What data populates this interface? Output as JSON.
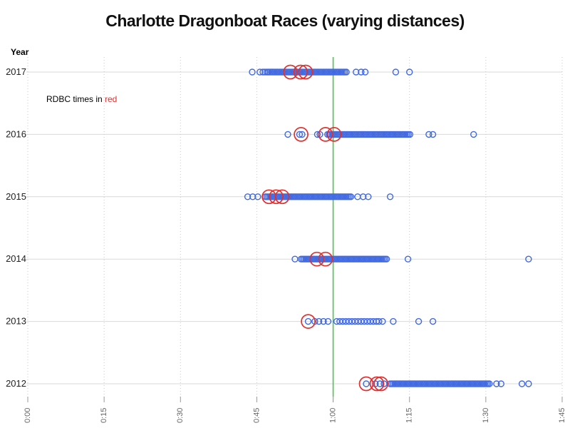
{
  "title": "Charlotte Dragonboat Races (varying distances)",
  "y_axis_label": "Year",
  "annotation": {
    "prefix": "RDBC times in ",
    "highlight": "red"
  },
  "colors": {
    "blue_point": "#4169e1",
    "rdbc_point": "#e03030",
    "reference_line": "#33cc33",
    "row_gridline": "#d9d9d9",
    "dotted_gridline": "#c8c8c8",
    "tick_mark": "#999999",
    "tick_label": "#666666",
    "year_label": "#222222"
  },
  "chart_data": {
    "type": "scatter",
    "subtype": "horizontal-strip-plot",
    "title": "Charlotte Dragonboat Races (varying distances)",
    "xlabel": "",
    "ylabel": "Year",
    "x_units": "minutes (axis labeled h:mm)",
    "x_axis": {
      "min_minutes": 0,
      "max_minutes": 105,
      "tick_interval_minutes": 15,
      "tick_labels": [
        "0:00",
        "0:15",
        "0:30",
        "0:45",
        "1:00",
        "1:15",
        "1:30",
        "1:45"
      ],
      "grid": "dotted vertical at each tick"
    },
    "reference_line_minutes": 60,
    "legend_note": "RDBC times shown as large red open circles",
    "categories": [
      "2017",
      "2016",
      "2015",
      "2014",
      "2013",
      "2012"
    ],
    "series": [
      {
        "year": "2017",
        "points_minutes": [
          44.1,
          45.6,
          46.2,
          46.6,
          47.0,
          47.3,
          47.6,
          47.9,
          48.2,
          48.5,
          48.8,
          49.1,
          49.4,
          49.7,
          50.0,
          50.3,
          50.6,
          50.9,
          51.2,
          51.5,
          51.8,
          52.1,
          52.4,
          52.7,
          53.0,
          53.3,
          53.6,
          53.9,
          54.2,
          54.5,
          54.8,
          55.1,
          55.4,
          55.7,
          56.0,
          56.3,
          56.6,
          56.9,
          57.2,
          57.5,
          57.8,
          58.1,
          58.4,
          58.7,
          59.0,
          59.3,
          59.6,
          59.9,
          60.2,
          60.5,
          60.8,
          61.1,
          61.4,
          61.7,
          62.0,
          62.3,
          62.6,
          64.5,
          65.5,
          66.3,
          72.3,
          75.0
        ],
        "rdbc_minutes": [
          51.6,
          53.6,
          54.6
        ]
      },
      {
        "year": "2016",
        "points_minutes": [
          51.1,
          53.4,
          53.9,
          56.9,
          57.4,
          58.9,
          59.2,
          59.5,
          59.8,
          60.1,
          60.4,
          60.7,
          61.0,
          61.3,
          61.6,
          61.9,
          62.2,
          62.5,
          62.8,
          63.1,
          63.4,
          63.7,
          64.0,
          64.3,
          64.6,
          64.9,
          65.2,
          65.5,
          65.8,
          66.1,
          66.4,
          66.7,
          67.0,
          67.3,
          67.6,
          67.9,
          68.2,
          68.5,
          68.8,
          69.1,
          69.4,
          69.7,
          70.0,
          70.3,
          70.6,
          70.9,
          71.2,
          71.5,
          71.8,
          72.1,
          72.4,
          72.7,
          73.0,
          73.3,
          73.6,
          73.9,
          74.2,
          74.5,
          74.8,
          75.1,
          78.8,
          79.6,
          87.6
        ],
        "rdbc_minutes": [
          53.7,
          58.5,
          60.2
        ]
      },
      {
        "year": "2015",
        "points_minutes": [
          43.2,
          44.2,
          45.2,
          46.7,
          47.0,
          47.3,
          47.6,
          47.9,
          48.2,
          48.5,
          48.8,
          49.1,
          49.4,
          49.7,
          50.0,
          50.3,
          50.6,
          50.9,
          51.2,
          51.5,
          51.8,
          52.1,
          52.4,
          52.7,
          53.0,
          53.3,
          53.6,
          53.9,
          54.2,
          54.5,
          54.8,
          55.1,
          55.4,
          55.7,
          56.0,
          56.3,
          56.6,
          56.9,
          57.2,
          57.5,
          57.8,
          58.1,
          58.4,
          58.7,
          59.0,
          59.3,
          59.6,
          59.9,
          60.2,
          60.5,
          60.8,
          61.1,
          61.4,
          61.7,
          62.0,
          62.3,
          62.6,
          62.9,
          63.2,
          63.5,
          64.8,
          65.9,
          66.9,
          71.2
        ],
        "rdbc_minutes": [
          47.4,
          48.8,
          50.0
        ]
      },
      {
        "year": "2014",
        "points_minutes": [
          52.5,
          53.7,
          54.0,
          54.3,
          54.6,
          54.9,
          55.2,
          55.5,
          55.8,
          56.1,
          56.4,
          56.7,
          57.0,
          57.3,
          57.6,
          57.9,
          58.2,
          58.5,
          58.8,
          59.1,
          59.4,
          59.7,
          60.0,
          60.3,
          60.6,
          60.9,
          61.2,
          61.5,
          61.8,
          62.1,
          62.4,
          62.7,
          63.0,
          63.3,
          63.6,
          63.9,
          64.2,
          64.5,
          64.8,
          65.1,
          65.4,
          65.7,
          66.0,
          66.3,
          66.6,
          66.9,
          67.2,
          67.5,
          67.8,
          68.1,
          68.4,
          68.7,
          69.0,
          69.3,
          69.6,
          69.9,
          70.2,
          70.5,
          74.7,
          98.4
        ],
        "rdbc_minutes": [
          56.8,
          58.5
        ]
      },
      {
        "year": "2013",
        "points_minutes": [
          55.1,
          56.4,
          57.2,
          58.1,
          59.0,
          60.7,
          61.3,
          61.9,
          62.5,
          63.1,
          63.7,
          64.3,
          64.9,
          65.5,
          66.1,
          66.7,
          67.3,
          67.9,
          68.5,
          69.0,
          69.7,
          71.8,
          76.8,
          79.6
        ],
        "rdbc_minutes": [
          55.1
        ]
      },
      {
        "year": "2012",
        "points_minutes": [
          66.5,
          68.3,
          69.2,
          70.0,
          71.2,
          71.5,
          71.8,
          72.1,
          72.4,
          72.7,
          73.0,
          73.3,
          73.6,
          73.9,
          74.2,
          74.5,
          74.8,
          75.1,
          75.4,
          75.7,
          76.0,
          76.3,
          76.6,
          76.9,
          77.2,
          77.5,
          77.8,
          78.1,
          78.4,
          78.7,
          79.0,
          79.3,
          79.6,
          79.9,
          80.2,
          80.5,
          80.8,
          81.1,
          81.4,
          81.7,
          82.0,
          82.3,
          82.6,
          82.9,
          83.2,
          83.5,
          83.8,
          84.1,
          84.4,
          84.7,
          85.0,
          85.3,
          85.6,
          85.9,
          86.2,
          86.5,
          86.8,
          87.1,
          87.4,
          87.7,
          88.0,
          88.3,
          88.6,
          88.9,
          89.2,
          89.5,
          89.8,
          90.1,
          90.4,
          90.7,
          92.1,
          93.0,
          97.1,
          98.4
        ],
        "rdbc_minutes": [
          66.5,
          68.6,
          69.4
        ]
      }
    ]
  }
}
